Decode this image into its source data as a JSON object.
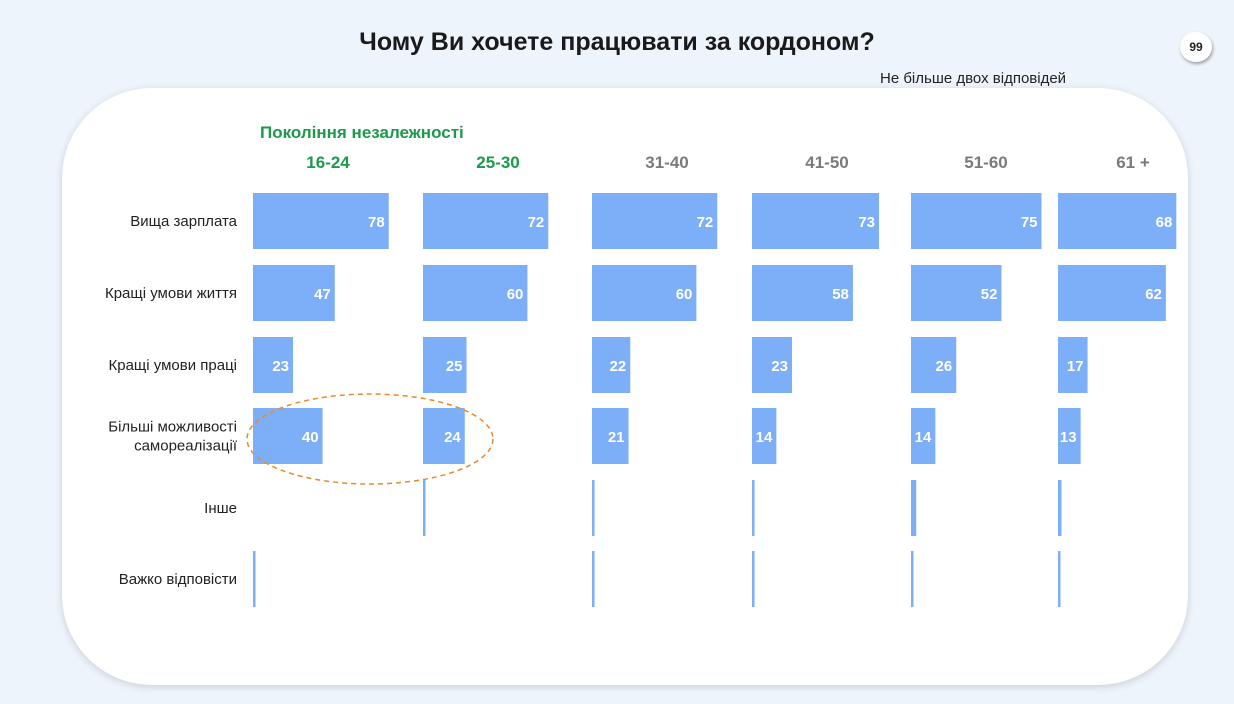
{
  "page": {
    "number": "99"
  },
  "colors": {
    "bar": "#7daef8",
    "green": "#1b9a4a",
    "grey": "#7a7a7a",
    "highlight": "#e8892c"
  },
  "chart_data": {
    "type": "bar",
    "title": "Чому Ви хочете працювати за кордоном?",
    "subtitle": "Не більше двох відповідей",
    "group_label": "Покоління незалежності",
    "categories": [
      "Вища зарплата",
      "Кращі умови життя",
      "Кращі умови праці",
      "Більші можливості самореалізації",
      "Інше",
      "Важко відповісти"
    ],
    "series": [
      {
        "name": "16-24",
        "highlight": true,
        "values": [
          78,
          47,
          23,
          40,
          0,
          1
        ]
      },
      {
        "name": "25-30",
        "highlight": true,
        "values": [
          72,
          60,
          25,
          24,
          1,
          0
        ]
      },
      {
        "name": "31-40",
        "highlight": false,
        "values": [
          72,
          60,
          22,
          21,
          1,
          0.5
        ]
      },
      {
        "name": "41-50",
        "highlight": false,
        "values": [
          73,
          58,
          23,
          14,
          1,
          0.5
        ]
      },
      {
        "name": "51-60",
        "highlight": false,
        "values": [
          75,
          52,
          26,
          14,
          3,
          0.5
        ]
      },
      {
        "name": "61 +",
        "highlight": false,
        "values": [
          68,
          62,
          17,
          13,
          2,
          1
        ]
      }
    ],
    "value_labels_shown_for_first": 4,
    "annotation": "ellipse highlighting 16-24 and 25-30 for Більші можливості самореалізації"
  }
}
